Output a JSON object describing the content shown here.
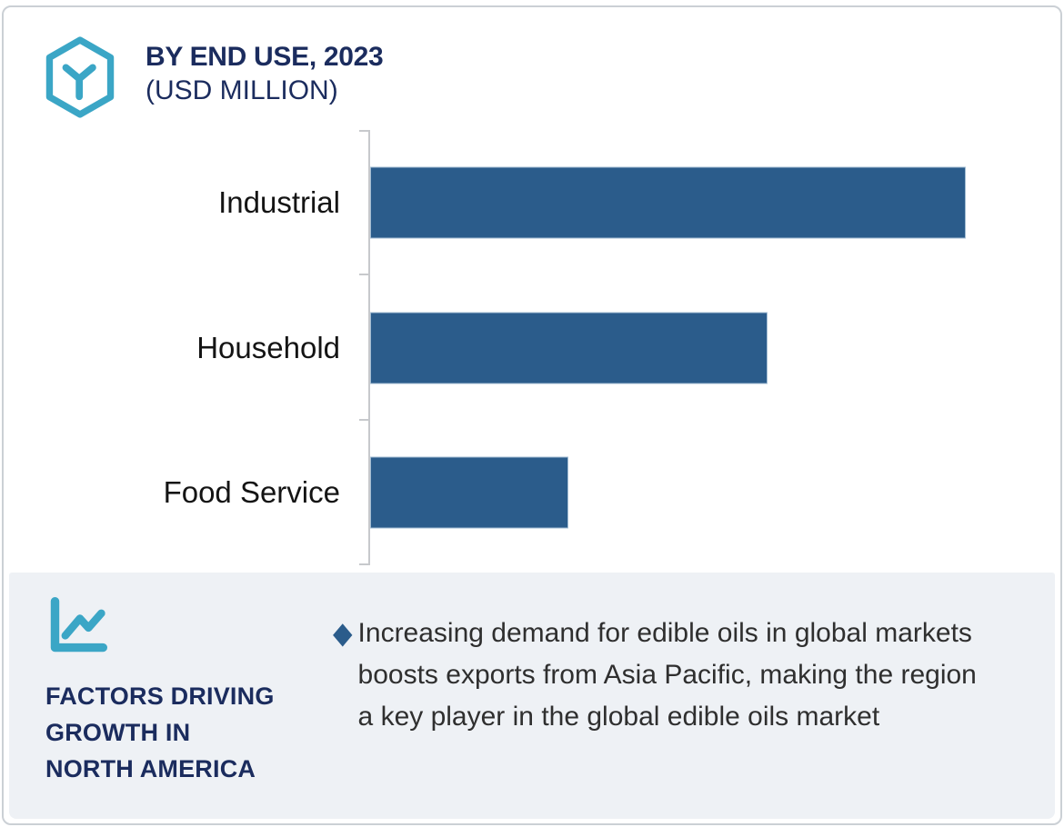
{
  "header": {
    "title": "BY END USE, 2023",
    "subtitle": "(USD MILLION)",
    "logo_icon": "hexagon-cube-icon"
  },
  "chart_data": {
    "type": "bar",
    "orientation": "horizontal",
    "title": "BY END USE, 2023",
    "subtitle": "(USD MILLION)",
    "categories": [
      "Industrial",
      "Household",
      "Food Service"
    ],
    "values_pct_of_max": [
      100,
      66.7,
      33.3
    ],
    "values_note": "No numeric axis or data labels are shown; bar lengths are in an approximate 3:2:1 ratio",
    "value_axis_labels_shown": false,
    "gridlines": false,
    "legend": false,
    "bar_color": "#2B5C8B",
    "axis_color": "#C7C9CC"
  },
  "factors_panel": {
    "icon": "line-chart-icon",
    "title_lines": [
      "FACTORS DRIVING",
      "GROWTH IN",
      "NORTH AMERICA"
    ],
    "bullet_glyph": "◆",
    "bullet_text": "Increasing demand for edible oils in global markets boosts exports from Asia Pacific, making the region a key player in the global edible oils market"
  },
  "colors": {
    "navy": "#1B2C5E",
    "teal": "#3BA6C6",
    "bar_blue": "#2B5C8B",
    "panel_bg": "#EEF1F5",
    "body_text": "#2F2F2F",
    "border": "#CBD0D5"
  }
}
